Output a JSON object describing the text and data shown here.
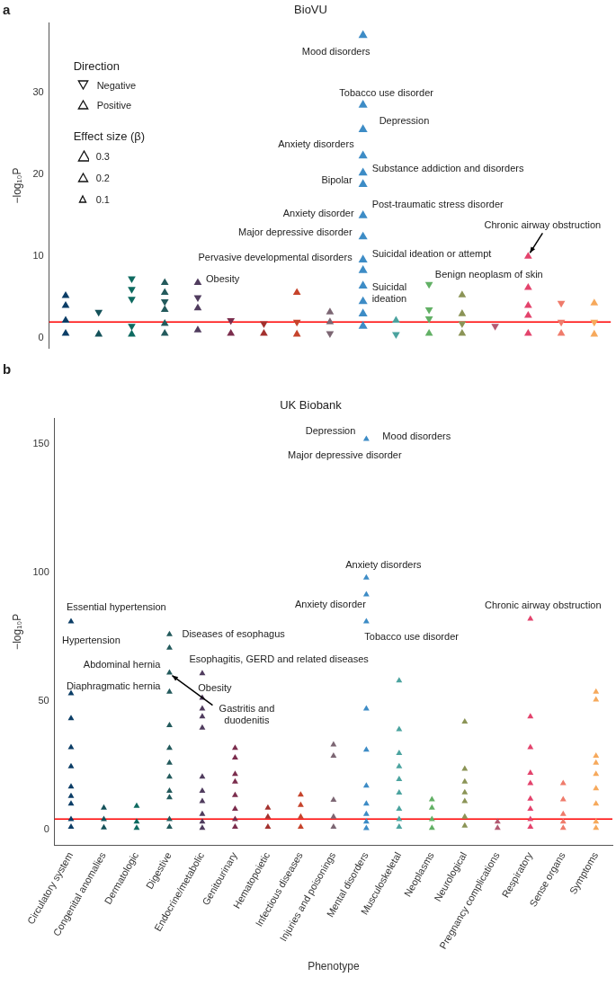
{
  "chart_data": [
    {
      "type": "scatter",
      "title": "BioVU",
      "ylabel": "−log₁₀P",
      "categories": [
        "Circulatory system",
        "Congenital anomalies",
        "Dermatologic",
        "Digestive",
        "Endocrine/metabolic",
        "Genitourinary",
        "Hematopoietic",
        "Infectious diseases",
        "Injuries and poisonings",
        "Mental disorders",
        "Musculoskeletal",
        "Neoplasms",
        "Neurological",
        "Pregnancy complications",
        "Respiratory",
        "Sense organs",
        "Symptoms"
      ],
      "ylim": [
        -1.2,
        38.5
      ],
      "yticks": [
        0,
        10,
        20,
        30
      ],
      "tick_labels": "y",
      "grid": false,
      "legend_title": "Direction",
      "size_legend": [
        0.3,
        0.2,
        0.1
      ],
      "ref_lines": [
        {
          "axis": "y",
          "value": 2.0,
          "color": "#ff0000"
        }
      ],
      "series": [
        {
          "marker": "triangle-down",
          "x": [
            "Congenital anomalies",
            "Dermatologic",
            "Dermatologic",
            "Dermatologic",
            "Dermatologic",
            "Digestive",
            "Endocrine/metabolic",
            "Genitourinary",
            "Hematopoietic",
            "Infectious diseases",
            "Injuries and poisonings",
            "Musculoskeletal",
            "Neoplasms",
            "Neoplasms",
            "Neoplasms",
            "Neurological",
            "Pregnancy complications",
            "Sense organs",
            "Sense organs",
            "Symptoms"
          ],
          "values": [
            3.2,
            1.5,
            4.8,
            6.0,
            7.3,
            4.5,
            5.0,
            2.2,
            1.8,
            2.0,
            0.6,
            0.5,
            2.4,
            3.5,
            6.6,
            1.8,
            1.5,
            2.0,
            4.3,
            2.0
          ],
          "sizes": [
            0.15,
            0.15,
            0.15,
            0.15,
            0.15,
            0.15,
            0.15,
            0.15,
            0.15,
            0.15,
            0.15,
            0.15,
            0.15,
            0.15,
            0.15,
            0.15,
            0.15,
            0.15,
            0.15,
            0.15
          ],
          "colors": [
            "#14525a",
            "#0e6a60",
            "#0e6a60",
            "#0e6a60",
            "#0e6a60",
            "#235a5c",
            "#503c5e",
            "#7b2d4d",
            "#a3312e",
            "#c6432b",
            "#7c6673",
            "#4ba39f",
            "#62b065",
            "#62b065",
            "#62b065",
            "#8b9456",
            "#b35a72",
            "#ef7b6b",
            "#ef7b6b",
            "#f6a95c"
          ]
        },
        {
          "marker": "triangle",
          "x": [
            "Circulatory system",
            "Circulatory system",
            "Circulatory system",
            "Circulatory system",
            "Congenital anomalies",
            "Dermatologic",
            "Digestive",
            "Digestive",
            "Digestive",
            "Digestive",
            "Digestive",
            "Endocrine/metabolic",
            "Endocrine/metabolic",
            "Endocrine/metabolic",
            "Genitourinary",
            "Hematopoietic",
            "Infectious diseases",
            "Infectious diseases",
            "Injuries and poisonings",
            "Injuries and poisonings",
            "Mental disorders",
            "Mental disorders",
            "Mental disorders",
            "Mental disorders",
            "Mental disorders",
            "Mental disorders",
            "Mental disorders",
            "Mental disorders",
            "Mental disorders",
            "Mental disorders",
            "Mental disorders",
            "Mental disorders",
            "Mental disorders",
            "Mental disorders",
            "Musculoskeletal",
            "Neoplasms",
            "Neurological",
            "Neurological",
            "Neurological",
            "Respiratory",
            "Respiratory",
            "Respiratory",
            "Respiratory",
            "Respiratory",
            "Sense organs",
            "Symptoms",
            "Symptoms"
          ],
          "values": [
            0.6,
            2.2,
            4.0,
            5.2,
            0.5,
            0.5,
            0.6,
            1.8,
            3.5,
            5.6,
            6.8,
            1.0,
            3.7,
            6.8,
            0.6,
            0.6,
            0.5,
            5.6,
            2.0,
            3.2,
            1.5,
            3.0,
            4.5,
            6.4,
            8.3,
            9.6,
            12.4,
            15,
            18.8,
            20.2,
            22.3,
            25.5,
            28.5,
            37,
            2.2,
            0.6,
            0.6,
            3.0,
            5.3,
            0.6,
            2.8,
            4.0,
            6.2,
            10.0,
            0.6,
            0.5,
            4.3
          ],
          "sizes": [
            0.15,
            0.15,
            0.15,
            0.15,
            0.15,
            0.15,
            0.15,
            0.15,
            0.15,
            0.15,
            0.15,
            0.15,
            0.15,
            0.15,
            0.15,
            0.15,
            0.15,
            0.15,
            0.15,
            0.15,
            0.2,
            0.2,
            0.2,
            0.2,
            0.2,
            0.2,
            0.2,
            0.2,
            0.2,
            0.2,
            0.2,
            0.2,
            0.2,
            0.2,
            0.15,
            0.15,
            0.15,
            0.15,
            0.15,
            0.15,
            0.15,
            0.15,
            0.15,
            0.15,
            0.15,
            0.15,
            0.15
          ],
          "colors": [
            "#0b3d66",
            "#0b3d66",
            "#0b3d66",
            "#0b3d66",
            "#14525a",
            "#0e6a60",
            "#235a5c",
            "#235a5c",
            "#235a5c",
            "#235a5c",
            "#235a5c",
            "#503c5e",
            "#503c5e",
            "#503c5e",
            "#7b2d4d",
            "#a3312e",
            "#c6432b",
            "#c6432b",
            "#7c6673",
            "#7c6673",
            "#3d8cc6",
            "#3d8cc6",
            "#3d8cc6",
            "#3d8cc6",
            "#3d8cc6",
            "#3d8cc6",
            "#3d8cc6",
            "#3d8cc6",
            "#3d8cc6",
            "#3d8cc6",
            "#3d8cc6",
            "#3d8cc6",
            "#3d8cc6",
            "#3d8cc6",
            "#4ba39f",
            "#62b065",
            "#8b9456",
            "#8b9456",
            "#8b9456",
            "#e3436c",
            "#e3436c",
            "#e3436c",
            "#e3436c",
            "#e3436c",
            "#ef7b6b",
            "#f6a95c",
            "#f6a95c"
          ]
        }
      ],
      "annotations": [
        "a",
        "Negative",
        "Positive",
        "Effect size (β)",
        {
          "text": "Mood disorders",
          "x": "Mental disorders",
          "y": 37
        },
        {
          "text": "Tobacco use disorder",
          "x": "Mental disorders",
          "y": 28.5
        },
        {
          "text": "Depression",
          "x": "Mental disorders",
          "y": 25.5
        },
        {
          "text": "Anxiety disorders",
          "x": "Mental disorders",
          "y": 22.3
        },
        {
          "text": "Substance addiction and disorders",
          "x": "Mental disorders",
          "y": 20.2
        },
        {
          "text": "Bipolar",
          "x": "Mental disorders",
          "y": 18.8
        },
        {
          "text": "Post-traumatic stress disorder",
          "x": "Mental disorders",
          "y": 15
        },
        {
          "text": "Anxiety disorder",
          "x": "Mental disorders",
          "y": 15
        },
        {
          "text": "Major depressive disorder",
          "x": "Mental disorders",
          "y": 12.4
        },
        {
          "text": "Suicidal ideation or attempt",
          "x": "Mental disorders",
          "y": 9.6
        },
        {
          "text": "Chronic airway obstruction",
          "x": "Respiratory",
          "y": 10.0
        },
        {
          "text": "Pervasive developmental disorders",
          "x": "Mental disorders",
          "y": 8.3
        },
        {
          "text": "Benign neoplasm of skin",
          "x": "Neurological",
          "y": 5.3
        },
        {
          "text": "Suicidal ideation",
          "x": "Mental disorders",
          "y": 6.4
        },
        {
          "text": "Obesity",
          "x": "Endocrine/metabolic",
          "y": 6.8
        }
      ]
    },
    {
      "type": "scatter",
      "title": "UK Biobank",
      "xlabel": "Phenotype",
      "ylabel": "−log₁₀P",
      "categories": [
        "Circulatory system",
        "Congenital anomalies",
        "Dermatologic",
        "Digestive",
        "Endocrine/metabolic",
        "Genitourinary",
        "Hematopoietic",
        "Infectious diseases",
        "Injuries and poisonings",
        "Mental disorders",
        "Musculoskeletal",
        "Neoplasms",
        "Neurological",
        "Pregnancy complications",
        "Respiratory",
        "Sense organs",
        "Symptoms"
      ],
      "ylim": [
        -6,
        160
      ],
      "yticks": [
        0,
        50,
        100,
        150
      ],
      "grid": false,
      "marker": "triangle",
      "ref_lines": [
        {
          "axis": "y",
          "value": 4.1,
          "color": "#ff0000"
        }
      ],
      "series": [
        {
          "color": "#0b3d66",
          "x": [
            "Circulatory system",
            "Circulatory system",
            "Circulatory system",
            "Circulatory system",
            "Circulatory system",
            "Circulatory system",
            "Circulatory system",
            "Circulatory system",
            "Circulatory system",
            "Circulatory system"
          ],
          "values": [
            1,
            4,
            10,
            13,
            16.7,
            24.6,
            32,
            43.3,
            53,
            81
          ]
        },
        {
          "color": "#14525a",
          "x": [
            "Congenital anomalies",
            "Congenital anomalies",
            "Congenital anomalies"
          ],
          "values": [
            0.8,
            4,
            8.5
          ]
        },
        {
          "color": "#0e6a60",
          "x": [
            "Dermatologic",
            "Dermatologic",
            "Dermatologic"
          ],
          "values": [
            0.6,
            3,
            9.2
          ]
        },
        {
          "color": "#235a5c",
          "x": [
            "Digestive",
            "Digestive",
            "Digestive",
            "Digestive",
            "Digestive",
            "Digestive",
            "Digestive",
            "Digestive",
            "Digestive",
            "Digestive",
            "Digestive",
            "Digestive"
          ],
          "values": [
            1,
            4,
            12.5,
            15,
            20.5,
            26,
            31.7,
            40.6,
            53.6,
            61,
            70.7,
            76
          ]
        },
        {
          "color": "#503c5e",
          "x": [
            "Endocrine/metabolic",
            "Endocrine/metabolic",
            "Endocrine/metabolic",
            "Endocrine/metabolic",
            "Endocrine/metabolic",
            "Endocrine/metabolic",
            "Endocrine/metabolic",
            "Endocrine/metabolic",
            "Endocrine/metabolic",
            "Endocrine/metabolic",
            "Endocrine/metabolic"
          ],
          "values": [
            0.6,
            3,
            6,
            11,
            15,
            20.5,
            39.6,
            44,
            47,
            51.2,
            60.8
          ]
        },
        {
          "color": "#7b2d4d",
          "x": [
            "Genitourinary",
            "Genitourinary",
            "Genitourinary",
            "Genitourinary",
            "Genitourinary",
            "Genitourinary",
            "Genitourinary",
            "Genitourinary"
          ],
          "values": [
            1,
            4,
            8,
            13.4,
            18.6,
            21.6,
            28,
            31.7
          ]
        },
        {
          "color": "#a3312e",
          "x": [
            "Hematopoietic",
            "Hematopoietic",
            "Hematopoietic"
          ],
          "values": [
            1,
            5,
            8.5
          ]
        },
        {
          "color": "#c6432b",
          "x": [
            "Infectious diseases",
            "Infectious diseases",
            "Infectious diseases",
            "Infectious diseases"
          ],
          "values": [
            1,
            5,
            9.5,
            13.5
          ]
        },
        {
          "color": "#7c6673",
          "x": [
            "Injuries and poisonings",
            "Injuries and poisonings",
            "Injuries and poisonings",
            "Injuries and poisonings",
            "Injuries and poisonings"
          ],
          "values": [
            1,
            5,
            11.5,
            28.7,
            33
          ]
        },
        {
          "color": "#3d8cc6",
          "x": [
            "Mental disorders",
            "Mental disorders",
            "Mental disorders",
            "Mental disorders",
            "Mental disorders",
            "Mental disorders",
            "Mental disorders",
            "Mental disorders",
            "Mental disorders",
            "Mental disorders",
            "Mental disorders"
          ],
          "values": [
            0.5,
            3,
            6,
            10,
            17,
            31,
            47,
            81,
            91.5,
            98,
            152
          ]
        },
        {
          "color": "#4ba39f",
          "x": [
            "Musculoskeletal",
            "Musculoskeletal",
            "Musculoskeletal",
            "Musculoskeletal",
            "Musculoskeletal",
            "Musculoskeletal",
            "Musculoskeletal",
            "Musculoskeletal",
            "Musculoskeletal"
          ],
          "values": [
            1,
            4,
            8,
            14.3,
            19.6,
            24.6,
            29.7,
            39,
            58
          ]
        },
        {
          "color": "#62b065",
          "x": [
            "Neoplasms",
            "Neoplasms",
            "Neoplasms",
            "Neoplasms"
          ],
          "values": [
            0.6,
            4,
            8.5,
            11.7
          ]
        },
        {
          "color": "#8b9456",
          "x": [
            "Neurological",
            "Neurological",
            "Neurological",
            "Neurological",
            "Neurological",
            "Neurological",
            "Neurological"
          ],
          "values": [
            1.5,
            5,
            11,
            14.4,
            18.6,
            23.6,
            42
          ]
        },
        {
          "color": "#b35a72",
          "x": [
            "Pregnancy complications",
            "Pregnancy complications"
          ],
          "values": [
            0.6,
            3
          ]
        },
        {
          "color": "#e3436c",
          "x": [
            "Respiratory",
            "Respiratory",
            "Respiratory",
            "Respiratory",
            "Respiratory",
            "Respiratory",
            "Respiratory",
            "Respiratory",
            "Respiratory"
          ],
          "values": [
            1,
            4,
            8,
            12,
            18,
            22,
            32,
            44,
            82
          ]
        },
        {
          "color": "#ef7b6b",
          "x": [
            "Sense organs",
            "Sense organs",
            "Sense organs",
            "Sense organs",
            "Sense organs"
          ],
          "values": [
            0.6,
            3,
            6,
            11.7,
            18
          ]
        },
        {
          "color": "#f6a95c",
          "x": [
            "Symptoms",
            "Symptoms",
            "Symptoms",
            "Symptoms",
            "Symptoms",
            "Symptoms",
            "Symptoms",
            "Symptoms",
            "Symptoms"
          ],
          "values": [
            0.6,
            3,
            10,
            16,
            21.6,
            26,
            28.7,
            50.5,
            53.6
          ]
        }
      ],
      "annotations": [
        "b",
        {
          "text": "Mood disorders",
          "x": "Mental disorders",
          "y": 152
        },
        {
          "text": "Depression",
          "x": "Mental disorders",
          "y": 152
        },
        {
          "text": "Major depressive disorder",
          "x": "Mental disorders",
          "y": 152
        },
        {
          "text": "Anxiety disorders",
          "x": "Mental disorders",
          "y": 98
        },
        {
          "text": "Anxiety disorder",
          "x": "Mental disorders",
          "y": 91.5
        },
        {
          "text": "Tobacco use disorder",
          "x": "Mental disorders",
          "y": 81
        },
        {
          "text": "Chronic airway obstruction",
          "x": "Respiratory",
          "y": 82
        },
        {
          "text": "Essential hypertension",
          "x": "Circulatory system",
          "y": 81
        },
        {
          "text": "Hypertension",
          "x": "Circulatory system",
          "y": 81
        },
        {
          "text": "Diseases of esophagus",
          "x": "Digestive",
          "y": 76
        },
        {
          "text": "Abdominal hernia",
          "x": "Digestive",
          "y": 61
        },
        {
          "text": "Esophagitis, GERD and related diseases",
          "x": "Digestive",
          "y": 61
        },
        {
          "text": "Diaphragmatic hernia",
          "x": "Digestive",
          "y": 53.6
        },
        {
          "text": "Obesity",
          "x": "Endocrine/metabolic",
          "y": 51.2
        },
        {
          "text": "Gastritis and duodenitis",
          "x": "Digestive",
          "y": 61
        }
      ]
    }
  ]
}
